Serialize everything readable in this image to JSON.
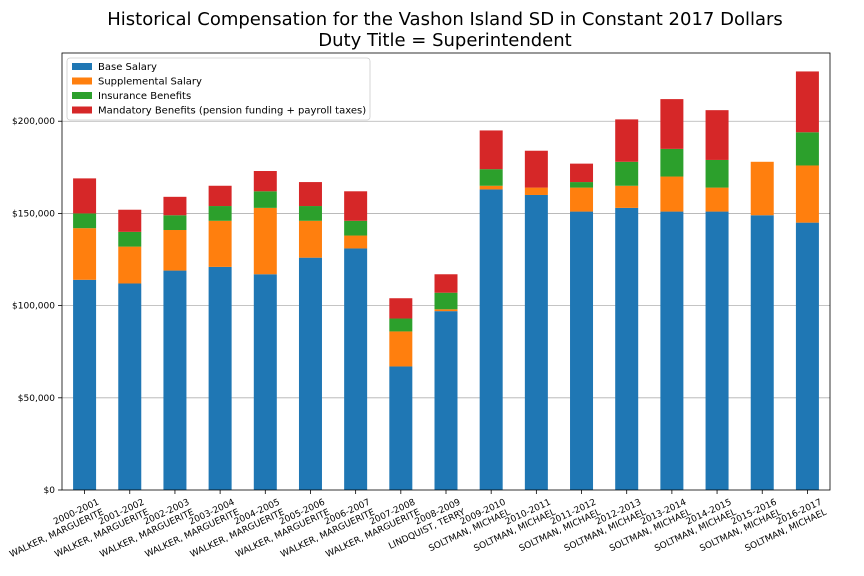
{
  "chart_data": {
    "type": "bar",
    "stacked": true,
    "title": "Historical Compensation for the Vashon Island SD in Constant 2017 Dollars",
    "subtitle": "Duty Title = Superintendent",
    "xlabel": "",
    "ylabel": "",
    "ylim": [
      0,
      237000
    ],
    "yticks": [
      0,
      50000,
      100000,
      150000,
      200000
    ],
    "ytick_labels": [
      "$0",
      "$50,000",
      "$100,000",
      "$150,000",
      "$200,000"
    ],
    "grid": "horizontal",
    "legend_position": "top-left",
    "categories": [
      [
        "2000-2001",
        "WALKER, MARGUERITE"
      ],
      [
        "2001-2002",
        "WALKER, MARGUERITE"
      ],
      [
        "2002-2003",
        "WALKER, MARGUERITE"
      ],
      [
        "2003-2004",
        "WALKER, MARGUERITE"
      ],
      [
        "2004-2005",
        "WALKER, MARGUERITE"
      ],
      [
        "2005-2006",
        "WALKER, MARGUERITE"
      ],
      [
        "2006-2007",
        "WALKER, MARGUERITE"
      ],
      [
        "2007-2008",
        "WALKER, MARGUERITE"
      ],
      [
        "2008-2009",
        "LINDQUIST, TERRY"
      ],
      [
        "2009-2010",
        "SOLTMAN, MICHAEL"
      ],
      [
        "2010-2011",
        "SOLTMAN, MICHAEL"
      ],
      [
        "2011-2012",
        "SOLTMAN, MICHAEL"
      ],
      [
        "2012-2013",
        "SOLTMAN, MICHAEL"
      ],
      [
        "2013-2014",
        "SOLTMAN, MICHAEL"
      ],
      [
        "2014-2015",
        "SOLTMAN, MICHAEL"
      ],
      [
        "2015-2016",
        "SOLTMAN, MICHAEL"
      ],
      [
        "2016-2017",
        "SOLTMAN, MICHAEL"
      ]
    ],
    "series": [
      {
        "name": "Base Salary",
        "color": "#1f77b4",
        "values": [
          114000,
          112000,
          119000,
          121000,
          117000,
          126000,
          131000,
          67000,
          97000,
          163000,
          160000,
          151000,
          153000,
          151000,
          151000,
          149000,
          145000
        ]
      },
      {
        "name": "Supplemental Salary",
        "color": "#ff7f0e",
        "values": [
          28000,
          20000,
          22000,
          25000,
          36000,
          20000,
          7000,
          19000,
          1000,
          2000,
          4000,
          13000,
          12000,
          19000,
          13000,
          29000,
          31000
        ]
      },
      {
        "name": "Insurance Benefits",
        "color": "#2ca02c",
        "values": [
          8000,
          8000,
          8000,
          8000,
          9000,
          8000,
          8000,
          7000,
          9000,
          9000,
          0,
          3000,
          13000,
          15000,
          15000,
          0,
          18000
        ]
      },
      {
        "name": "Mandatory Benefits (pension funding + payroll taxes)",
        "color": "#d62728",
        "values": [
          19000,
          12000,
          10000,
          11000,
          11000,
          13000,
          16000,
          11000,
          10000,
          21000,
          20000,
          10000,
          23000,
          27000,
          27000,
          0,
          33000
        ]
      }
    ]
  }
}
